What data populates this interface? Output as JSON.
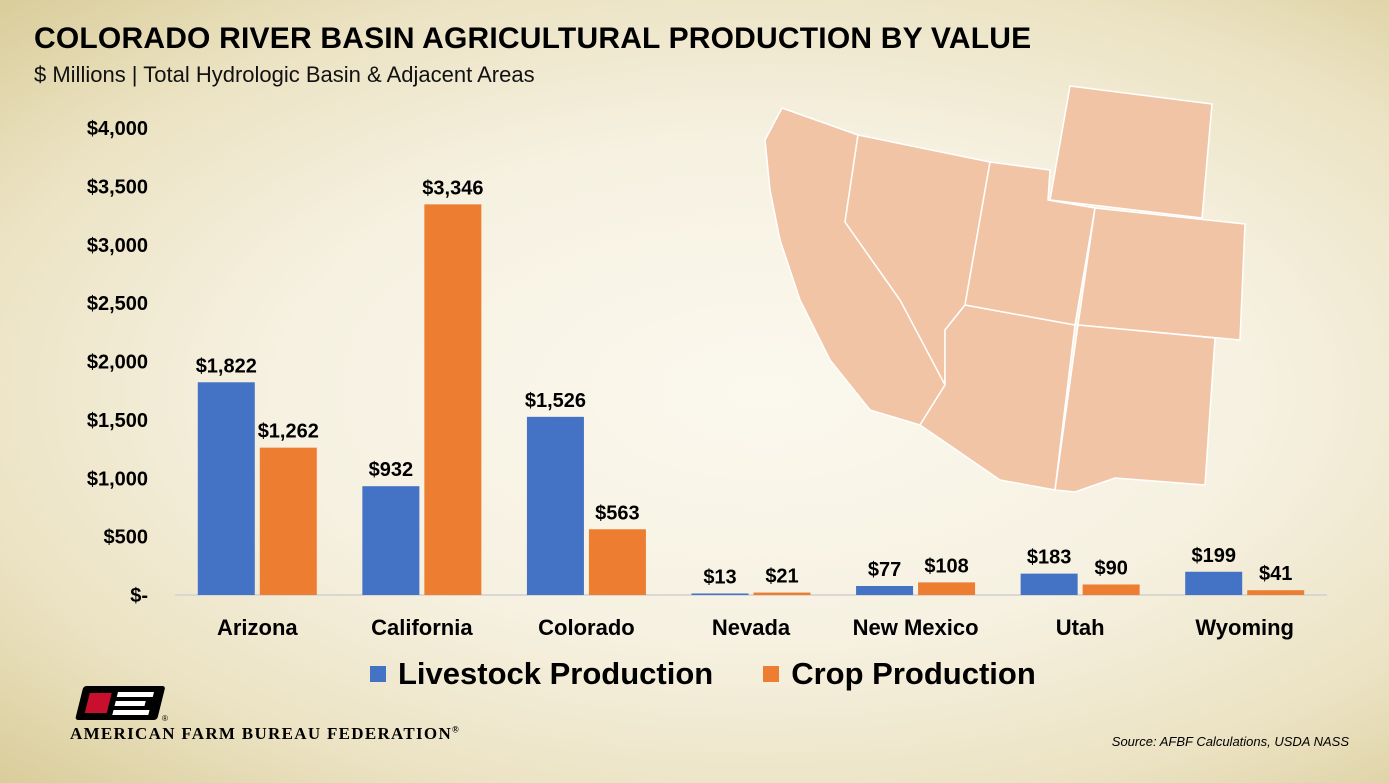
{
  "title": "COLORADO RIVER BASIN AGRICULTURAL PRODUCTION BY VALUE",
  "subtitle": "$ Millions | Total Hydrologic Basin & Adjacent Areas",
  "colors": {
    "livestock": "#4472c4",
    "crop": "#ed7d31",
    "map_fill": "#f2c4a6",
    "map_stroke": "#ffffff",
    "logo_red": "#c8102e"
  },
  "chart_data": {
    "type": "bar",
    "categories": [
      "Arizona",
      "California",
      "Colorado",
      "Nevada",
      "New Mexico",
      "Utah",
      "Wyoming"
    ],
    "series": [
      {
        "name": "Livestock Production",
        "values": [
          1822,
          932,
          1526,
          13,
          77,
          183,
          199
        ],
        "labels": [
          "$1,822",
          "$932",
          "$1,526",
          "$13",
          "$77",
          "$183",
          "$199"
        ]
      },
      {
        "name": "Crop Production",
        "values": [
          1262,
          3346,
          563,
          21,
          108,
          90,
          41
        ],
        "labels": [
          "$1,262",
          "$3,346",
          "$563",
          "$21",
          "$108",
          "$90",
          "$41"
        ]
      }
    ],
    "ylim": [
      0,
      4000
    ],
    "yticks": [
      {
        "value": 0,
        "label": "$-"
      },
      {
        "value": 500,
        "label": "$500"
      },
      {
        "value": 1000,
        "label": "$1,000"
      },
      {
        "value": 1500,
        "label": "$1,500"
      },
      {
        "value": 2000,
        "label": "$2,000"
      },
      {
        "value": 2500,
        "label": "$2,500"
      },
      {
        "value": 3000,
        "label": "$3,000"
      },
      {
        "value": 3500,
        "label": "$3,500"
      },
      {
        "value": 4000,
        "label": "$4,000"
      }
    ],
    "grid": false,
    "legend_position": "bottom"
  },
  "legend": [
    {
      "label": "Livestock Production"
    },
    {
      "label": "Crop Production"
    }
  ],
  "branding": {
    "org_name": "AMERICAN FARM BUREAU FEDERATION",
    "registered_mark": "®",
    "logo_letters": "FB"
  },
  "source": "Source: AFBF Calculations, USDA NASS"
}
